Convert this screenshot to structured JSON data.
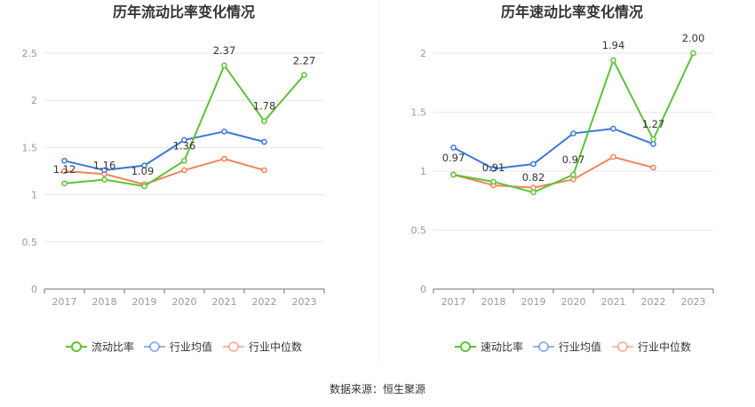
{
  "chart_data": [
    {
      "type": "line",
      "title": "历年流动比率变化情况",
      "categories": [
        "2017",
        "2018",
        "2019",
        "2020",
        "2021",
        "2022",
        "2023"
      ],
      "ylim": [
        0,
        2.5
      ],
      "yticks": [
        "0",
        "0.5",
        "1",
        "1.5",
        "2",
        "2.5"
      ],
      "grid": true,
      "legend_position": "bottom",
      "series": [
        {
          "name": "流动比率",
          "color": "#5dc238",
          "values": [
            1.12,
            1.16,
            1.09,
            1.36,
            2.37,
            1.78,
            2.27
          ],
          "labels": [
            "1.12",
            "1.16",
            "1.09",
            "1.36",
            "2.37",
            "1.78",
            "2.27"
          ]
        },
        {
          "name": "行业均值",
          "color": "#3b77dd",
          "values": [
            1.36,
            1.26,
            1.31,
            1.58,
            1.67,
            1.56,
            null
          ]
        },
        {
          "name": "行业中位数",
          "color": "#f0845a",
          "values": [
            1.25,
            1.22,
            1.11,
            1.26,
            1.38,
            1.26,
            null
          ]
        }
      ]
    },
    {
      "type": "line",
      "title": "历年速动比率变化情况",
      "categories": [
        "2017",
        "2018",
        "2019",
        "2020",
        "2021",
        "2022",
        "2023"
      ],
      "ylim": [
        0,
        2
      ],
      "yticks": [
        "0",
        "0.5",
        "1",
        "1.5",
        "2"
      ],
      "grid": true,
      "legend_position": "bottom",
      "series": [
        {
          "name": "速动比率",
          "color": "#5dc238",
          "values": [
            0.97,
            0.91,
            0.82,
            0.97,
            1.94,
            1.27,
            2.0
          ],
          "labels": [
            "0.97",
            "0.91",
            "0.82",
            "0.97",
            "1.94",
            "1.27",
            "2.00"
          ]
        },
        {
          "name": "行业均值",
          "color": "#3b77dd",
          "values": [
            1.2,
            1.02,
            1.06,
            1.32,
            1.36,
            1.23,
            null
          ]
        },
        {
          "name": "行业中位数",
          "color": "#f0845a",
          "values": [
            0.97,
            0.88,
            0.86,
            0.93,
            1.12,
            1.03,
            null
          ]
        }
      ]
    }
  ],
  "footer": {
    "source": "数据来源：恒生聚源"
  }
}
